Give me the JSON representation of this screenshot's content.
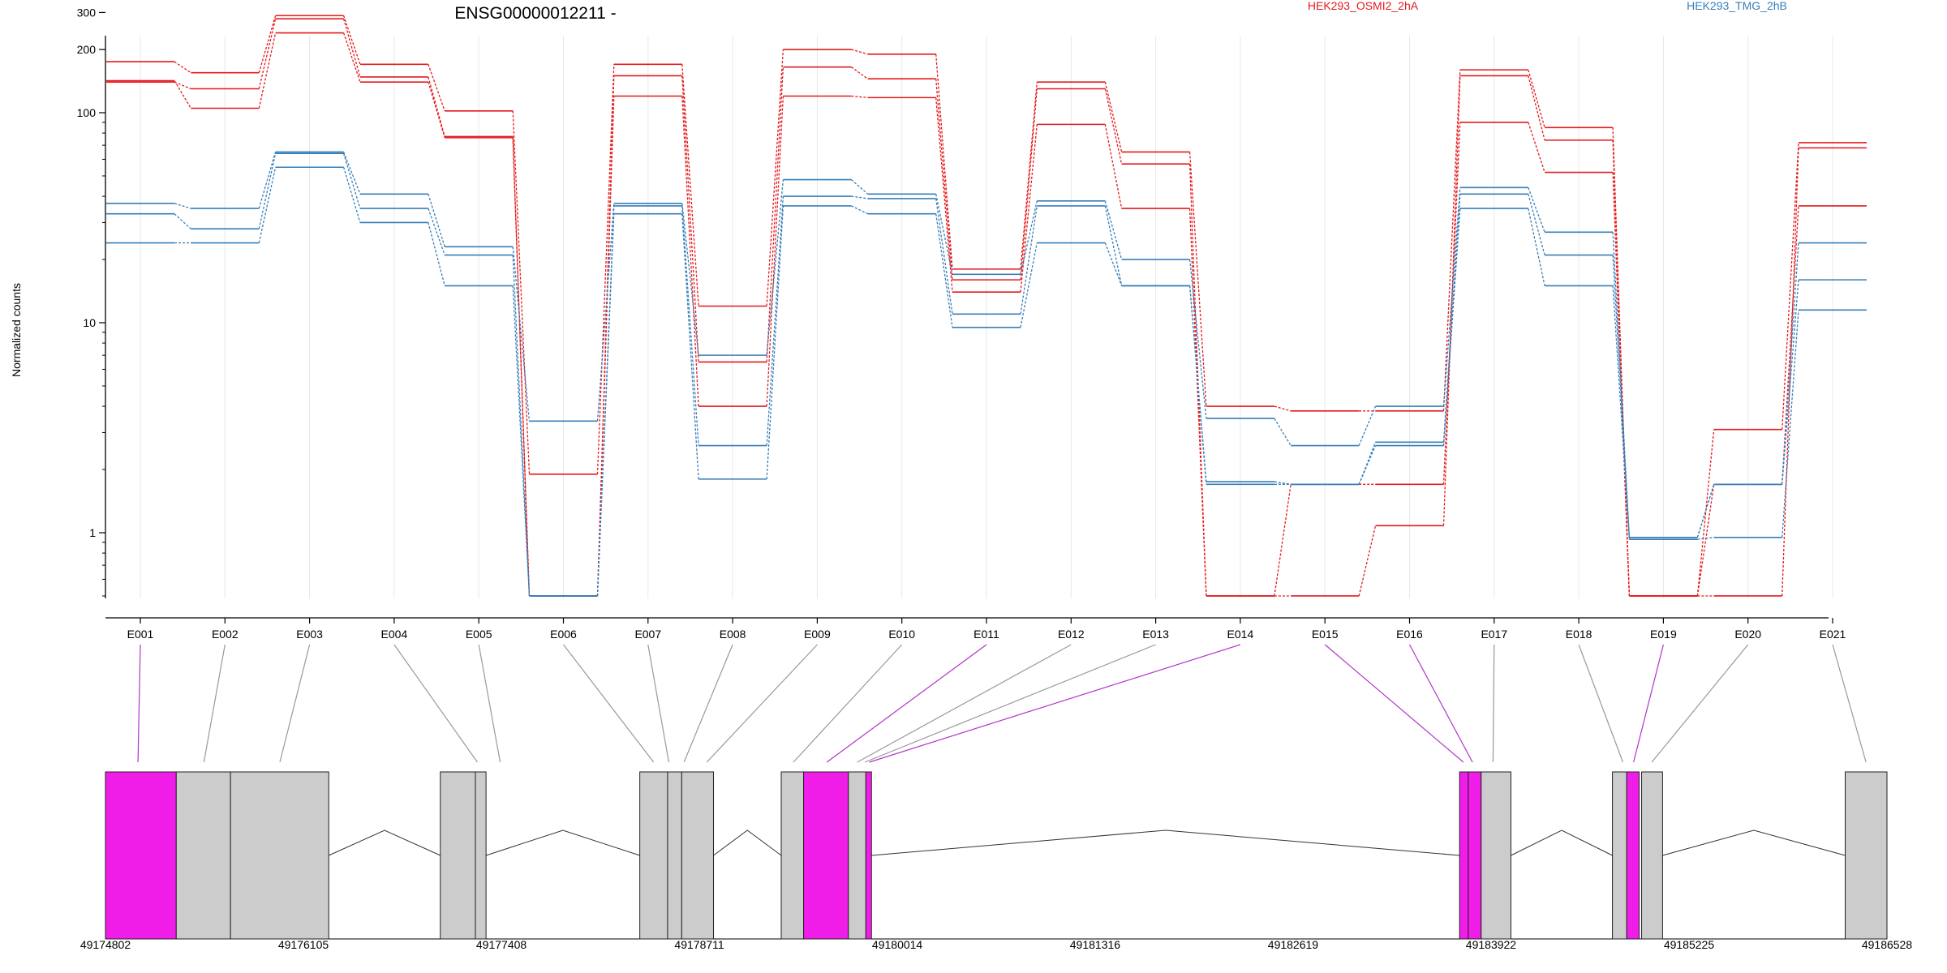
{
  "chart_data": {
    "type": "line",
    "title": "ENSG00000012211 -",
    "ylabel": "Normalized counts",
    "yscale": "log",
    "ylim": [
      0.5,
      400
    ],
    "grid": "vertical",
    "legend_placement": "top-right",
    "yticks": [
      "1",
      "10",
      "100",
      "200",
      "300"
    ],
    "categories": [
      "E001",
      "E002",
      "E003",
      "E004",
      "E005",
      "E006",
      "E007",
      "E008",
      "E009",
      "E010",
      "E011",
      "E012",
      "E013",
      "E014",
      "E015",
      "E016",
      "E017",
      "E018",
      "E019",
      "E020",
      "E021"
    ],
    "series": [
      {
        "name": "HEK293_OSMI2_2hA",
        "color": "#e41a1c",
        "replicates": [
          [
            175,
            155,
            290,
            170,
            102,
            1.9,
            170,
            12,
            200,
            190,
            18,
            140,
            65,
            4.0,
            3.8,
            3.8,
            160,
            85,
            0.5,
            3.1,
            72
          ],
          [
            140,
            130,
            280,
            148,
            77,
            0.5,
            150,
            6.5,
            165,
            145,
            16,
            130,
            57,
            0.5,
            0.5,
            1.08,
            150,
            74,
            0.5,
            0.5,
            68
          ],
          [
            142,
            105,
            240,
            140,
            76,
            0.5,
            120,
            4.0,
            120,
            118,
            14,
            88,
            35,
            0.5,
            1.7,
            1.7,
            90,
            52,
            0.5,
            1.7,
            36
          ]
        ]
      },
      {
        "name": "HEK293_TMG_2hB",
        "color": "#377eb8",
        "replicates": [
          [
            37,
            35,
            65,
            41,
            23,
            3.4,
            37,
            7.0,
            48,
            41,
            17,
            38,
            20,
            3.5,
            2.6,
            4.0,
            44,
            27,
            0.95,
            1.7,
            24
          ],
          [
            33,
            28,
            64,
            35,
            21,
            0.5,
            36,
            2.6,
            40,
            39,
            11,
            36,
            15,
            1.75,
            1.7,
            2.7,
            41,
            21,
            0.95,
            1.7,
            16
          ],
          [
            24,
            24,
            55,
            30,
            15,
            0.5,
            33,
            1.8,
            36,
            33,
            9.5,
            24,
            15,
            1.7,
            1.7,
            2.6,
            35,
            15,
            0.93,
            0.95,
            11.5
          ]
        ]
      }
    ],
    "gene_model": {
      "start": 49174802,
      "end": 49186528,
      "coordinate_ticks": [
        "49174802",
        "49176105",
        "49177408",
        "49178711",
        "49180014",
        "49181316",
        "49182619",
        "49183922",
        "49185225",
        "49186528"
      ],
      "exons": [
        {
          "id": "E001",
          "start": 49174802,
          "end": 49175268,
          "highlight": true
        },
        {
          "id": "E002",
          "start": 49175268,
          "end": 49175625,
          "highlight": false
        },
        {
          "id": "E003",
          "start": 49175625,
          "end": 49176272,
          "highlight": false
        },
        {
          "id": "E004",
          "start": 49177006,
          "end": 49177237,
          "highlight": false
        },
        {
          "id": "E005",
          "start": 49177237,
          "end": 49177307,
          "highlight": false
        },
        {
          "id": "E006",
          "start": 49178319,
          "end": 49178502,
          "highlight": false
        },
        {
          "id": "E007",
          "start": 49178502,
          "end": 49178595,
          "highlight": false
        },
        {
          "id": "E008",
          "start": 49178595,
          "end": 49178804,
          "highlight": false
        },
        {
          "id": "E009",
          "start": 49179250,
          "end": 49179397,
          "highlight": false
        },
        {
          "id": "E010",
          "start": 49179397,
          "end": 49179692,
          "highlight": true
        },
        {
          "id": "E011",
          "start": 49179692,
          "end": 49179807,
          "highlight": false
        },
        {
          "id": "E012",
          "start": 49179807,
          "end": 49179844,
          "highlight": true
        },
        {
          "id": "E014",
          "start": 49183715,
          "end": 49183772,
          "highlight": true
        },
        {
          "id": "E015",
          "start": 49183772,
          "end": 49183857,
          "highlight": true
        },
        {
          "id": "E016",
          "start": 49183857,
          "end": 49184053,
          "highlight": false
        },
        {
          "id": "E017",
          "start": 49184721,
          "end": 49184815,
          "highlight": false
        },
        {
          "id": "E018",
          "start": 49184815,
          "end": 49184897,
          "highlight": true
        },
        {
          "id": "E019",
          "start": 49184913,
          "end": 49185051,
          "highlight": false
        },
        {
          "id": "E021",
          "start": 49186253,
          "end": 49186528,
          "highlight": false
        }
      ],
      "introns": [
        {
          "start": 49176272,
          "end": 49177006
        },
        {
          "start": 49177307,
          "end": 49178319
        },
        {
          "start": 49178804,
          "end": 49179250
        },
        {
          "start": 49179844,
          "end": 49183715
        },
        {
          "start": 49184053,
          "end": 49184721
        },
        {
          "start": 49185051,
          "end": 49186253
        }
      ],
      "connectors": [
        {
          "exon": "E001",
          "pos": 49175016,
          "highlight": true
        },
        {
          "exon": "E002",
          "pos": 49175450,
          "highlight": false
        },
        {
          "exon": "E003",
          "pos": 49175950,
          "highlight": false
        },
        {
          "exon": "E004",
          "pos": 49177250,
          "highlight": false
        },
        {
          "exon": "E005",
          "pos": 49177400,
          "highlight": false
        },
        {
          "exon": "E006",
          "pos": 49178410,
          "highlight": false
        },
        {
          "exon": "E007",
          "pos": 49178510,
          "highlight": false
        },
        {
          "exon": "E008",
          "pos": 49178610,
          "highlight": false
        },
        {
          "exon": "E009",
          "pos": 49178760,
          "highlight": false
        },
        {
          "exon": "E010",
          "pos": 49179330,
          "highlight": false
        },
        {
          "exon": "E011",
          "pos": 49179550,
          "highlight": true
        },
        {
          "exon": "E012",
          "pos": 49179750,
          "highlight": false
        },
        {
          "exon": "E013",
          "pos": 49179800,
          "highlight": false
        },
        {
          "exon": "E014",
          "pos": 49179830,
          "highlight": true
        },
        {
          "exon": "E015",
          "pos": 49183740,
          "highlight": true
        },
        {
          "exon": "E016",
          "pos": 49183800,
          "highlight": true
        },
        {
          "exon": "E017",
          "pos": 49183935,
          "highlight": false
        },
        {
          "exon": "E018",
          "pos": 49184790,
          "highlight": false
        },
        {
          "exon": "E019",
          "pos": 49184860,
          "highlight": true
        },
        {
          "exon": "E020",
          "pos": 49184980,
          "highlight": false
        },
        {
          "exon": "E021",
          "pos": 49186390,
          "highlight": false
        }
      ],
      "highlight_color": "#f01de8",
      "exon_color": "#cccccc"
    }
  }
}
